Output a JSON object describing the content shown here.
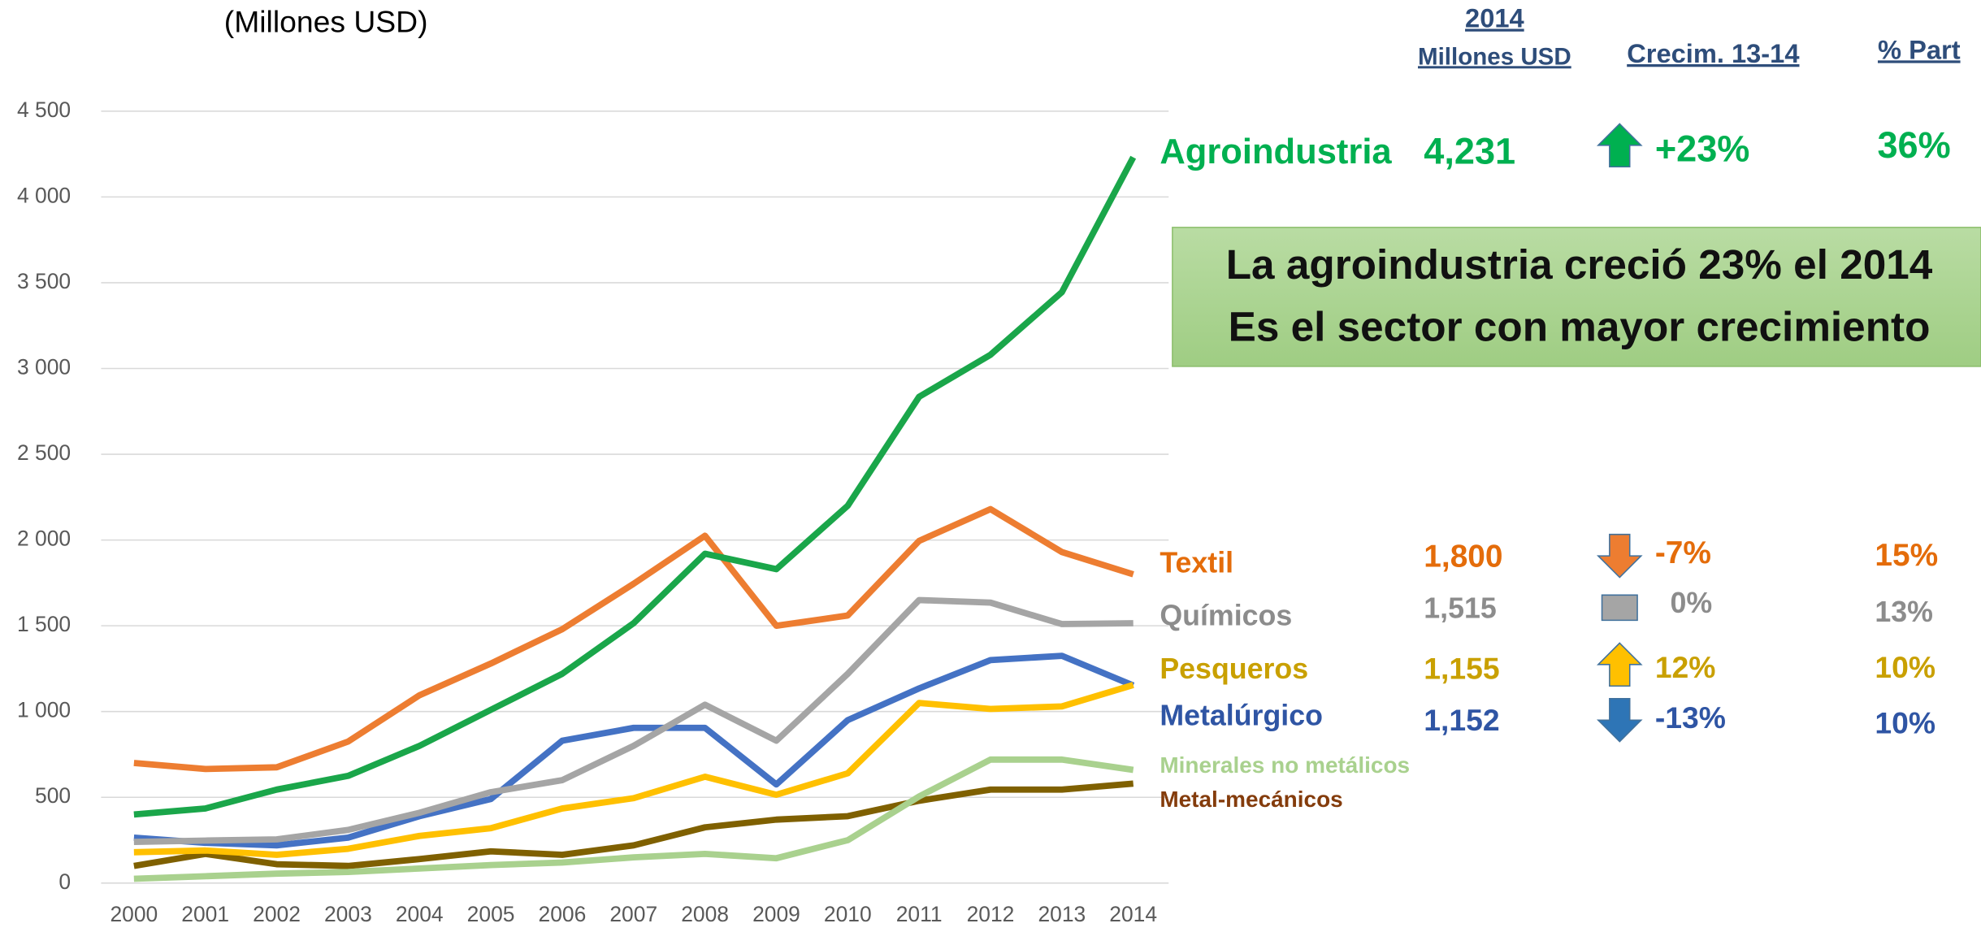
{
  "chart_data": {
    "type": "line",
    "title": "(Millones USD)",
    "x": [
      2000,
      2001,
      2002,
      2003,
      2004,
      2005,
      2006,
      2007,
      2008,
      2009,
      2010,
      2011,
      2012,
      2013,
      2014
    ],
    "xlim": [
      2000,
      2014
    ],
    "ylim": [
      0,
      4500
    ],
    "yticks": [
      0,
      500,
      {
        "value": 1000,
        "label": "1 000"
      },
      {
        "value": 1500,
        "label": "1 500"
      },
      {
        "value": 2000,
        "label": "2 000"
      },
      {
        "value": 2500,
        "label": "2 500"
      },
      {
        "value": 3000,
        "label": "3 000"
      },
      {
        "value": 3500,
        "label": "3 500"
      },
      {
        "value": 4000,
        "label": "4 000"
      },
      {
        "value": 4500,
        "label": "4 500"
      }
    ],
    "grid": true,
    "series": [
      {
        "name": "Agroindustria",
        "color": "#1aa64a",
        "values": [
          400,
          435,
          545,
          625,
          800,
          1010,
          1220,
          1515,
          1920,
          1830,
          2200,
          2835,
          3080,
          3445,
          4231
        ]
      },
      {
        "name": "Textil",
        "color": "#ed7d31",
        "values": [
          700,
          665,
          675,
          825,
          1095,
          1280,
          1480,
          1745,
          2025,
          1500,
          1560,
          1995,
          2180,
          1930,
          1800
        ]
      },
      {
        "name": "Químicos",
        "color": "#a5a5a5",
        "values": [
          240,
          248,
          255,
          310,
          410,
          530,
          600,
          800,
          1040,
          830,
          1220,
          1650,
          1635,
          1510,
          1515
        ]
      },
      {
        "name": "Pesqueros",
        "color": "#ffc000",
        "values": [
          180,
          190,
          165,
          200,
          275,
          320,
          435,
          495,
          620,
          515,
          640,
          1050,
          1015,
          1030,
          1155
        ]
      },
      {
        "name": "Metalúrgico",
        "color": "#4472c4",
        "values": [
          265,
          235,
          220,
          265,
          390,
          490,
          830,
          905,
          905,
          575,
          950,
          1135,
          1300,
          1325,
          1152
        ]
      },
      {
        "name": "Minerales no metálicos",
        "color": "#a9d18e",
        "values": [
          25,
          40,
          55,
          65,
          85,
          105,
          120,
          150,
          170,
          145,
          250,
          505,
          720,
          720,
          660
        ]
      },
      {
        "name": "Metal-mecánicos",
        "color": "#7f6000",
        "values": [
          100,
          170,
          110,
          100,
          140,
          185,
          165,
          220,
          325,
          370,
          390,
          480,
          545,
          545,
          580
        ]
      }
    ],
    "summary": {
      "headers": {
        "year": "2014",
        "value": "Millones USD",
        "change": "Crecim. 13-14",
        "share": "% Part"
      },
      "rows": [
        {
          "value": "4,231",
          "change": "+23%",
          "share": "36%"
        },
        {
          "value": "1,800",
          "change": "-7%",
          "share": "15%"
        },
        {
          "value": "1,515",
          "change": "0%",
          "share": "13%"
        },
        {
          "value": "1,155",
          "change": "12%",
          "share": "10%"
        },
        {
          "value": "1,152",
          "change": "-13%",
          "share": "10%"
        }
      ]
    },
    "banner": [
      "La agroindustria creció 23% el 2014",
      "Es el sector con mayor crecimiento"
    ]
  }
}
